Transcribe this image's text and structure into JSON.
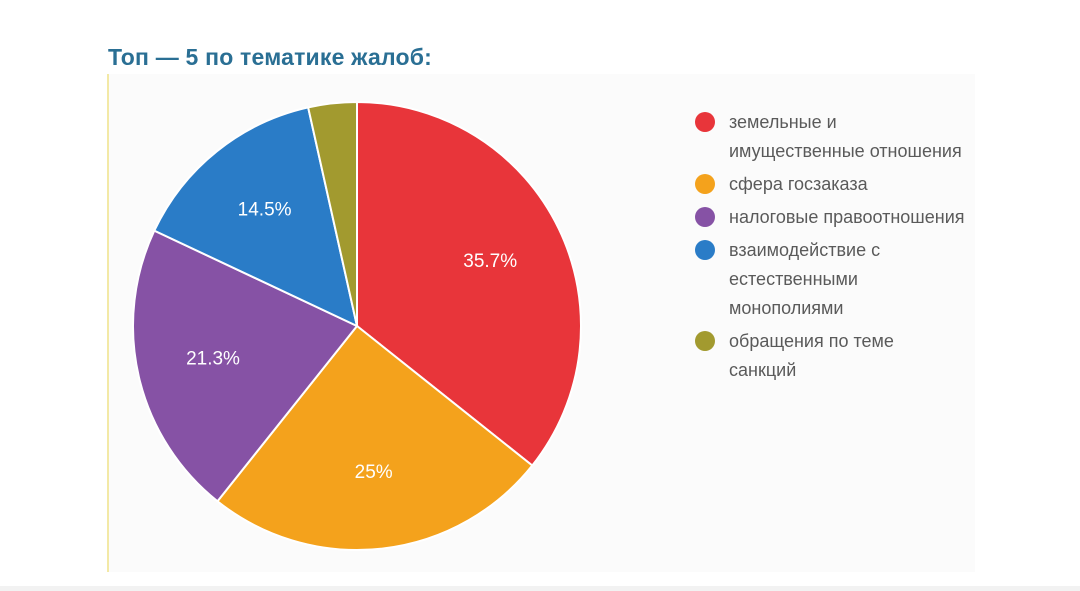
{
  "chart_data": {
    "type": "pie",
    "title": "Топ — 5 по тематике жалоб:",
    "slices": [
      {
        "label": "земельные и имущественные отношения",
        "value": 35.7,
        "value_label": "35.7%",
        "color": "#e8353a"
      },
      {
        "label": "сфера госзаказа",
        "value": 25,
        "value_label": "25%",
        "color": "#f4a21c"
      },
      {
        "label": "налоговые правоотношения",
        "value": 21.3,
        "value_label": "21.3%",
        "color": "#8652a5"
      },
      {
        "label": "взаимодействие с естественными монополиями",
        "value": 14.5,
        "value_label": "14.5%",
        "color": "#2a7cc7"
      },
      {
        "label": "обращения по теме санкций",
        "value": 3.5,
        "value_label": "",
        "color": "#a29a2f"
      }
    ],
    "legend_position": "right"
  }
}
